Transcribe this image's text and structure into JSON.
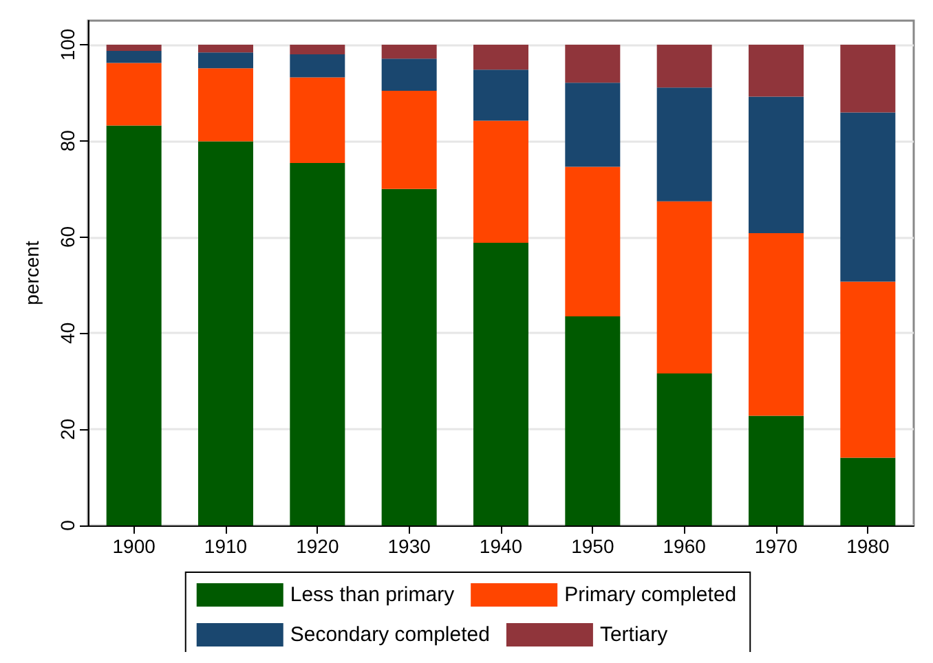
{
  "chart_data": {
    "type": "bar",
    "stacked": true,
    "ylabel": "percent",
    "categories": [
      "1900",
      "1910",
      "1920",
      "1930",
      "1940",
      "1950",
      "1960",
      "1970",
      "1980"
    ],
    "series": [
      {
        "name": "Less than primary",
        "color": "#005a00",
        "values": [
          83.2,
          79.9,
          75.4,
          70.0,
          58.8,
          43.5,
          31.6,
          22.8,
          14.1
        ]
      },
      {
        "name": "Primary completed",
        "color": "#ff4500",
        "values": [
          13.0,
          15.2,
          17.8,
          20.4,
          25.4,
          31.1,
          35.8,
          38.0,
          36.6
        ]
      },
      {
        "name": "Secondary completed",
        "color": "#1a476f",
        "values": [
          2.5,
          3.3,
          4.8,
          6.7,
          10.6,
          17.5,
          23.7,
          28.4,
          35.2
        ]
      },
      {
        "name": "Tertiary",
        "color": "#90353b",
        "values": [
          1.3,
          1.6,
          2.0,
          2.9,
          5.2,
          7.9,
          8.9,
          10.8,
          14.1
        ]
      }
    ],
    "ylim": [
      0,
      105
    ],
    "yticks": [
      0,
      20,
      40,
      60,
      80,
      100
    ],
    "grid": "y",
    "legend": "bottom"
  }
}
